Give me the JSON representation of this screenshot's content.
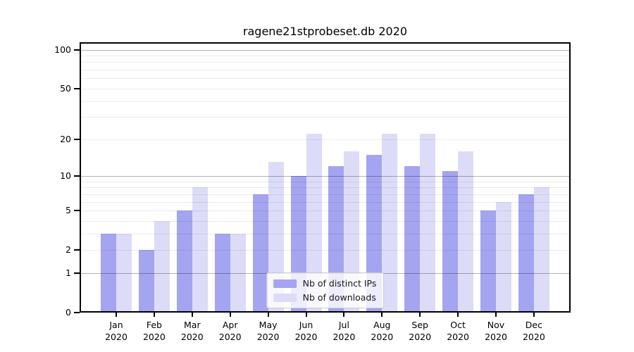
{
  "chart_data": {
    "type": "bar",
    "title": "ragene21stprobeset.db 2020",
    "year": "2020",
    "categories": [
      "Jan",
      "Feb",
      "Mar",
      "Apr",
      "May",
      "Jun",
      "Jul",
      "Aug",
      "Sep",
      "Oct",
      "Nov",
      "Dec"
    ],
    "series": [
      {
        "name": "Nb of distinct IPs",
        "color": "#a4a4f0",
        "values": [
          3,
          2,
          5,
          3,
          7,
          10,
          12,
          15,
          12,
          11,
          5,
          7
        ]
      },
      {
        "name": "Nb of downloads",
        "color": "#dcdcf8",
        "values": [
          3,
          4,
          8,
          3,
          13,
          22,
          16,
          22,
          22,
          16,
          6,
          8
        ]
      }
    ],
    "xlabel": "",
    "ylabel": "",
    "yscale": "log1p",
    "ylim": [
      0,
      114
    ],
    "y_tick_values": [
      100,
      50,
      20,
      10,
      5,
      2,
      1,
      0
    ],
    "grid": {
      "enabled": true,
      "major_values": [
        1,
        10,
        100
      ],
      "minor_values": [
        2,
        3,
        4,
        5,
        6,
        7,
        8,
        9,
        20,
        30,
        40,
        50,
        60,
        70,
        80,
        90
      ]
    },
    "legend_position": "lower center"
  },
  "colors": {
    "distinct_ips_bar": "#a4a4f0",
    "downloads_bar": "#dcdcf8",
    "grid_major": "#b0b0b0",
    "grid_minor": "#e8e8e8",
    "axis": "#000000",
    "text": "#000000",
    "legend_border": "#cccccc",
    "legend_background": "#ffffff"
  }
}
